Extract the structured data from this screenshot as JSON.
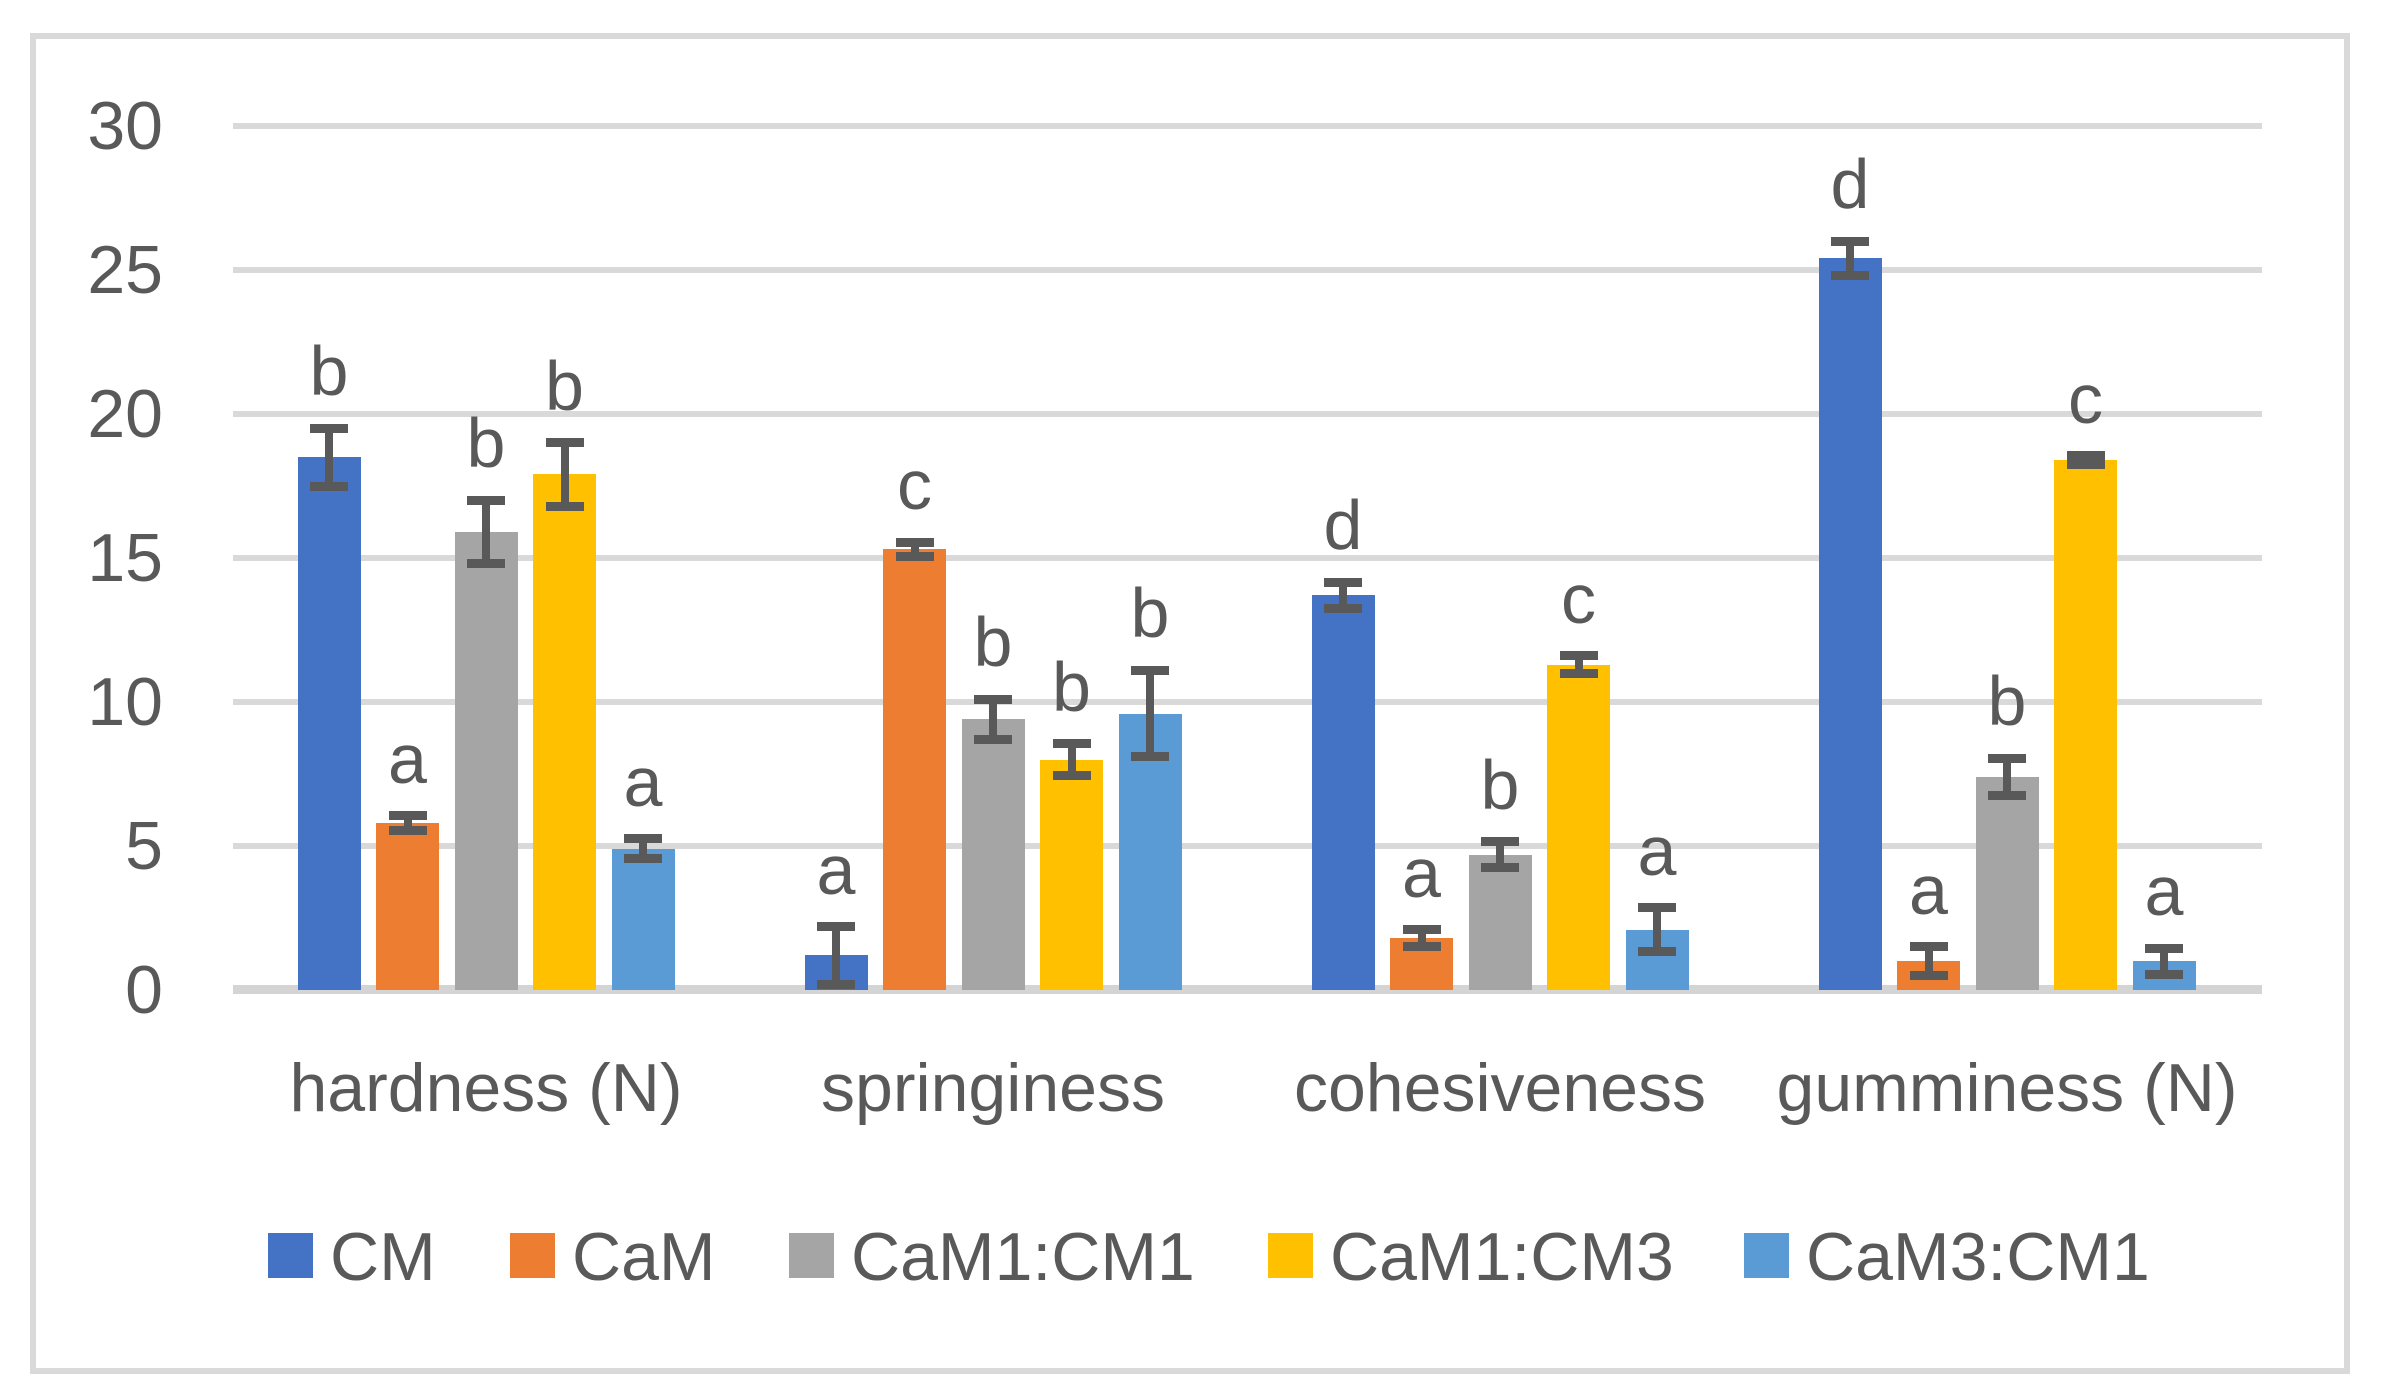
{
  "chart_data": {
    "type": "bar",
    "title": "",
    "categories": [
      "hardness (N)",
      "springiness",
      "cohesiveness",
      "gumminess (N)"
    ],
    "series": [
      {
        "name": "CM",
        "color": "#4472C4",
        "values": [
          18.5,
          1.2,
          13.7,
          25.4
        ],
        "errors": [
          1.0,
          1.0,
          0.45,
          0.6
        ],
        "letters": [
          "b",
          "a",
          "d",
          "d"
        ]
      },
      {
        "name": "CaM",
        "color": "#ED7D31",
        "values": [
          5.8,
          15.3,
          1.8,
          1.0
        ],
        "errors": [
          0.25,
          0.25,
          0.3,
          0.5
        ],
        "letters": [
          "a",
          "c",
          "a",
          "a"
        ]
      },
      {
        "name": "CaM1:CM1",
        "color": "#A5A5A5",
        "values": [
          15.9,
          9.4,
          4.7,
          7.4
        ],
        "errors": [
          1.1,
          0.7,
          0.45,
          0.65
        ],
        "letters": [
          "b",
          "b",
          "b",
          "b"
        ]
      },
      {
        "name": "CaM1:CM3",
        "color": "#FFC000",
        "values": [
          17.9,
          8.0,
          11.3,
          18.4
        ],
        "errors": [
          1.1,
          0.55,
          0.3,
          0.15
        ],
        "letters": [
          "b",
          "b",
          "c",
          "c"
        ]
      },
      {
        "name": "CaM3:CM1",
        "color": "#5B9BD5",
        "values": [
          4.9,
          9.6,
          2.1,
          1.0
        ],
        "errors": [
          0.35,
          1.5,
          0.75,
          0.45
        ],
        "letters": [
          "a",
          "b",
          "a",
          "a"
        ]
      }
    ],
    "y_axis": {
      "min": 0,
      "max": 30,
      "step": 5,
      "tick_labels": [
        "0",
        "5",
        "10",
        "15",
        "20",
        "25",
        "30"
      ]
    },
    "xlabel": "",
    "ylabel": "",
    "grid": true,
    "legend_position": "bottom",
    "colors": {
      "gridline": "#D9D9D9",
      "axis_line": "#D4D4D4",
      "error_bar": "#595959",
      "text": "#595959",
      "frame_border": "#D9D9D9",
      "background": "#FFFFFF"
    }
  }
}
